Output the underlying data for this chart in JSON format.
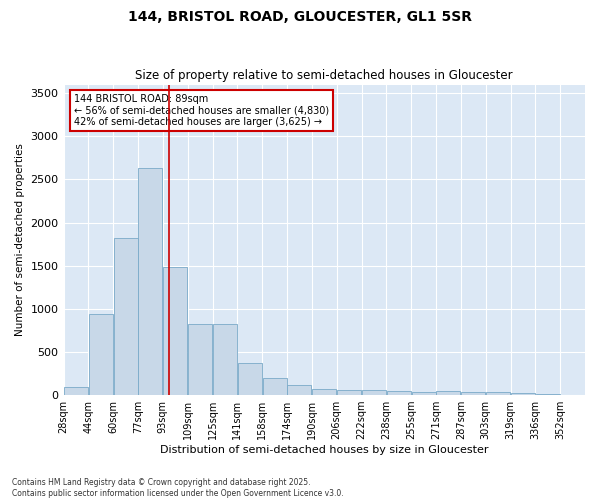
{
  "title_line1": "144, BRISTOL ROAD, GLOUCESTER, GL1 5SR",
  "title_line2": "Size of property relative to semi-detached houses in Gloucester",
  "xlabel": "Distribution of semi-detached houses by size in Gloucester",
  "ylabel": "Number of semi-detached properties",
  "footnote": "Contains HM Land Registry data © Crown copyright and database right 2025.\nContains public sector information licensed under the Open Government Licence v3.0.",
  "annotation_title": "144 BRISTOL ROAD: 89sqm",
  "annotation_line2": "← 56% of semi-detached houses are smaller (4,830)",
  "annotation_line3": "42% of semi-detached houses are larger (3,625) →",
  "property_size": 89,
  "bar_color": "#c8d8e8",
  "bar_edge_color": "#7aaac8",
  "vline_color": "#cc0000",
  "bg_color": "#dce8f5",
  "annotation_box_color": "#ffffff",
  "annotation_border_color": "#cc0000",
  "categories": [
    "28sqm",
    "44sqm",
    "60sqm",
    "77sqm",
    "93sqm",
    "109sqm",
    "125sqm",
    "141sqm",
    "158sqm",
    "174sqm",
    "190sqm",
    "206sqm",
    "222sqm",
    "238sqm",
    "255sqm",
    "271sqm",
    "287sqm",
    "303sqm",
    "319sqm",
    "336sqm",
    "352sqm"
  ],
  "bin_edges": [
    21,
    37,
    53,
    69,
    85,
    101,
    117,
    133,
    149,
    165,
    181,
    197,
    213,
    229,
    245,
    261,
    277,
    293,
    309,
    325,
    341,
    357
  ],
  "values": [
    95,
    940,
    1820,
    2630,
    1490,
    820,
    820,
    370,
    200,
    115,
    70,
    60,
    55,
    45,
    40,
    50,
    40,
    35,
    20,
    10,
    5
  ],
  "ylim": [
    0,
    3600
  ],
  "yticks": [
    0,
    500,
    1000,
    1500,
    2000,
    2500,
    3000,
    3500
  ]
}
